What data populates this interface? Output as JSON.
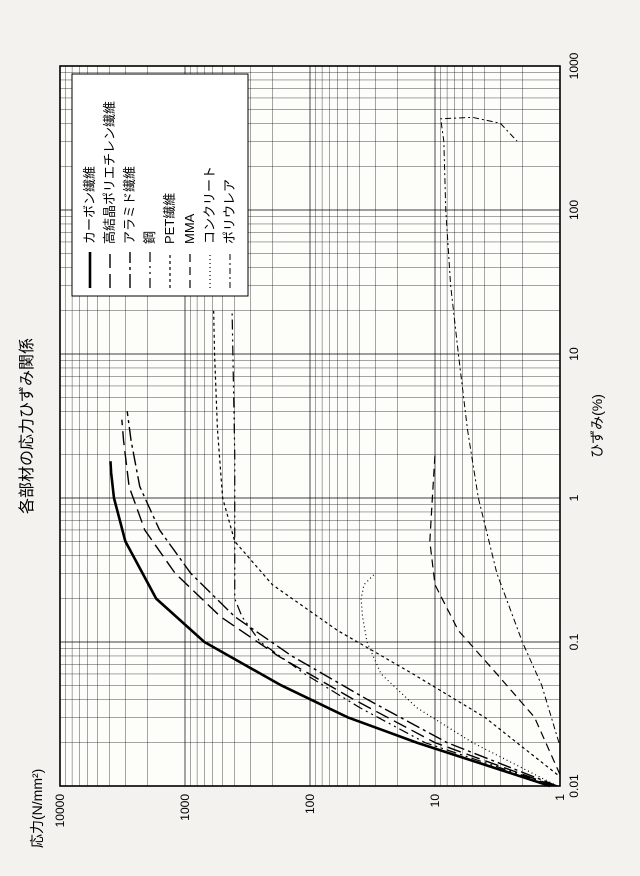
{
  "chart": {
    "type": "line-loglog",
    "title": "各部材の応力ひずみ関係",
    "xlabel": "ひずみ(%)",
    "ylabel": "応力(N/mm²)",
    "title_fontsize": 16,
    "label_fontsize": 14,
    "tick_fontsize": 12,
    "background_color": "#f4f2ee",
    "plot_background": "#fdfdfa",
    "grid_color": "#000000",
    "xlim": [
      0.01,
      1000
    ],
    "ylim": [
      1,
      10000
    ],
    "xticks": [
      0.01,
      0.1,
      1,
      10,
      100,
      1000
    ],
    "yticks": [
      1,
      10,
      100,
      1000,
      10000
    ],
    "xticklabels": [
      "0.01",
      "0.1",
      "1",
      "10",
      "100",
      "1000"
    ],
    "yticklabels": [
      "1",
      "10",
      "100",
      "1000",
      "10000"
    ],
    "legend": {
      "items": [
        {
          "key": "carbon",
          "label": "カーボン繊維",
          "dash": "",
          "width": 2.6
        },
        {
          "key": "hppe",
          "label": "高結晶ポリエチレン繊維",
          "dash": "14 6",
          "width": 1.4
        },
        {
          "key": "aramid",
          "label": "アラミド繊維",
          "dash": "14 4 3 4",
          "width": 1.4
        },
        {
          "key": "steel",
          "label": "鋼",
          "dash": "10 4 2 4 2 4",
          "width": 1.2
        },
        {
          "key": "pet",
          "label": "PET繊維",
          "dash": "3 3",
          "width": 1.2
        },
        {
          "key": "mma",
          "label": "MMA",
          "dash": "8 5",
          "width": 1.2
        },
        {
          "key": "concrete",
          "label": "コンクリート",
          "dash": "1 3",
          "width": 1.2
        },
        {
          "key": "polyurea",
          "label": "ポリウレア",
          "dash": "6 3 2 3",
          "width": 1.0
        }
      ]
    },
    "series": {
      "carbon": {
        "stroke": "#000000",
        "width": 2.6,
        "dash": "",
        "points": [
          [
            0.01,
            1.2
          ],
          [
            0.02,
            14
          ],
          [
            0.03,
            50
          ],
          [
            0.05,
            170
          ],
          [
            0.1,
            700
          ],
          [
            0.2,
            1700
          ],
          [
            0.5,
            3000
          ],
          [
            1.0,
            3700
          ],
          [
            1.5,
            3900
          ],
          [
            1.8,
            3950
          ]
        ]
      },
      "hppe": {
        "stroke": "#000000",
        "width": 1.4,
        "dash": "14 6",
        "points": [
          [
            0.01,
            1.1
          ],
          [
            0.02,
            10
          ],
          [
            0.04,
            45
          ],
          [
            0.08,
            180
          ],
          [
            0.15,
            520
          ],
          [
            0.3,
            1200
          ],
          [
            0.6,
            2100
          ],
          [
            1.2,
            2800
          ],
          [
            2.5,
            3100
          ],
          [
            3.5,
            3200
          ]
        ]
      },
      "aramid": {
        "stroke": "#000000",
        "width": 1.4,
        "dash": "14 4 3 4",
        "points": [
          [
            0.01,
            1.05
          ],
          [
            0.02,
            8
          ],
          [
            0.04,
            35
          ],
          [
            0.08,
            140
          ],
          [
            0.15,
            400
          ],
          [
            0.3,
            900
          ],
          [
            0.6,
            1600
          ],
          [
            1.2,
            2300
          ],
          [
            2.5,
            2700
          ],
          [
            4.0,
            2900
          ]
        ]
      },
      "steel": {
        "stroke": "#000000",
        "width": 1.2,
        "dash": "10 4 2 4 2 4",
        "points": [
          [
            0.01,
            1.1
          ],
          [
            0.02,
            12
          ],
          [
            0.035,
            40
          ],
          [
            0.06,
            110
          ],
          [
            0.1,
            250
          ],
          [
            0.15,
            350
          ],
          [
            0.2,
            400
          ],
          [
            0.5,
            400
          ],
          [
            2,
            400
          ],
          [
            20,
            420
          ]
        ]
      },
      "pet": {
        "stroke": "#000000",
        "width": 1.2,
        "dash": "3 3",
        "points": [
          [
            0.012,
            1.05
          ],
          [
            0.03,
            4
          ],
          [
            0.06,
            15
          ],
          [
            0.12,
            60
          ],
          [
            0.25,
            200
          ],
          [
            0.5,
            400
          ],
          [
            1.0,
            500
          ],
          [
            3,
            550
          ],
          [
            10,
            580
          ],
          [
            20,
            590
          ]
        ]
      },
      "mma": {
        "stroke": "#000000",
        "width": 1.2,
        "dash": "8 5",
        "points": [
          [
            0.012,
            1.0
          ],
          [
            0.03,
            1.6
          ],
          [
            0.06,
            3.2
          ],
          [
            0.12,
            6.5
          ],
          [
            0.25,
            10
          ],
          [
            0.5,
            11
          ],
          [
            1.0,
            10.5
          ],
          [
            2.0,
            10
          ]
        ]
      },
      "concrete": {
        "stroke": "#000000",
        "width": 1.2,
        "dash": "1 3",
        "points": [
          [
            0.01,
            1.05
          ],
          [
            0.02,
            5
          ],
          [
            0.035,
            14
          ],
          [
            0.06,
            27
          ],
          [
            0.1,
            35
          ],
          [
            0.15,
            38
          ],
          [
            0.2,
            39
          ],
          [
            0.25,
            37
          ],
          [
            0.3,
            30
          ]
        ]
      },
      "polyurea": {
        "stroke": "#000000",
        "width": 1.0,
        "dash": "6 3 2 3",
        "points": [
          [
            0.02,
            1.02
          ],
          [
            0.05,
            1.4
          ],
          [
            0.1,
            2.0
          ],
          [
            0.3,
            3.2
          ],
          [
            1,
            4.5
          ],
          [
            3,
            5.5
          ],
          [
            10,
            6.5
          ],
          [
            30,
            7.5
          ],
          [
            100,
            8.2
          ],
          [
            300,
            8.5
          ],
          [
            430,
            9
          ],
          [
            440,
            5
          ],
          [
            400,
            3
          ],
          [
            300,
            2.2
          ]
        ]
      }
    }
  }
}
